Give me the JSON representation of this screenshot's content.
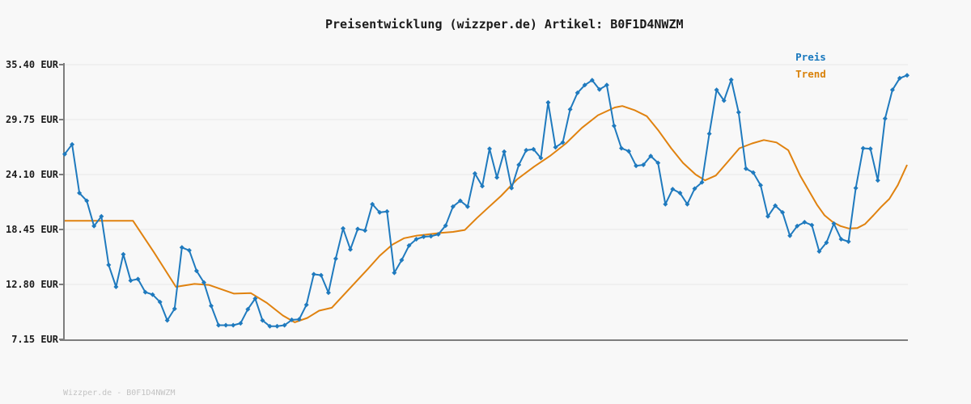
{
  "title": "Preisentwicklung (wizzper.de) Artikel: B0F1D4NWZM",
  "watermark": "Wizzper.de - B0F1D4NWZM",
  "legend": [
    {
      "label": "Preis",
      "color": "#1878be"
    },
    {
      "label": "Trend",
      "color": "#d9820b"
    }
  ],
  "colors": {
    "background": "#f8f8f8",
    "grid": "#e8e8e8",
    "axis": "#7d7d7d",
    "price": "#1f7abe",
    "trend": "#e0820f"
  },
  "chart_data": {
    "type": "line",
    "title": "Preisentwicklung (wizzper.de) Artikel: B0F1D4NWZM",
    "xlabel": "",
    "ylabel": "",
    "grid": true,
    "legend_position": "top-right",
    "y_axis": {
      "unit": "EUR",
      "min": 7.15,
      "max": 35.4,
      "ticks": [
        {
          "label": "35.40 EUR",
          "value": 35.4
        },
        {
          "label": "29.75 EUR",
          "value": 29.75
        },
        {
          "label": "24.10 EUR",
          "value": 24.1
        },
        {
          "label": "18.45 EUR",
          "value": 18.45
        },
        {
          "label": "12.80 EUR",
          "value": 12.8
        },
        {
          "label": "7.15 EUR",
          "value": 7.15
        }
      ]
    },
    "series": [
      {
        "name": "Preis",
        "color": "#1f7abe",
        "marker": "diamond",
        "values": [
          26.2,
          27.2,
          22.2,
          21.4,
          18.8,
          19.8,
          14.8,
          12.55,
          15.9,
          13.2,
          13.35,
          12.0,
          11.75,
          11.0,
          9.1,
          10.3,
          16.6,
          16.3,
          14.2,
          13.0,
          10.6,
          8.6,
          8.6,
          8.6,
          8.8,
          10.25,
          11.35,
          9.1,
          8.5,
          8.5,
          8.6,
          9.15,
          9.2,
          10.7,
          13.85,
          13.75,
          11.95,
          15.45,
          18.55,
          16.4,
          18.5,
          18.35,
          21.05,
          20.2,
          20.3,
          14.0,
          15.3,
          16.8,
          17.45,
          17.7,
          17.75,
          17.95,
          18.85,
          20.8,
          21.4,
          20.8,
          24.2,
          22.9,
          26.75,
          23.8,
          26.45,
          22.7,
          25.1,
          26.6,
          26.7,
          25.8,
          31.5,
          26.9,
          27.4,
          30.8,
          32.5,
          33.3,
          33.8,
          32.85,
          33.3,
          29.1,
          26.8,
          26.5,
          25.0,
          25.1,
          26.0,
          25.3,
          21.05,
          22.6,
          22.2,
          21.05,
          22.65,
          23.3,
          28.3,
          32.8,
          31.7,
          33.85,
          30.5,
          24.7,
          24.3,
          23.0,
          19.8,
          20.9,
          20.2,
          17.8,
          18.8,
          19.2,
          18.9,
          16.2,
          17.1,
          19.05,
          17.45,
          17.2,
          22.7,
          26.8,
          26.75,
          23.5,
          29.85,
          32.8,
          34.0,
          34.3
        ]
      },
      {
        "name": "Trend",
        "color": "#e0820f",
        "marker": "none",
        "points": [
          [
            0,
            19.35
          ],
          [
            0.081,
            19.35
          ],
          [
            0.106,
            16.1
          ],
          [
            0.132,
            12.55
          ],
          [
            0.154,
            12.85
          ],
          [
            0.171,
            12.75
          ],
          [
            0.201,
            11.85
          ],
          [
            0.221,
            11.9
          ],
          [
            0.24,
            10.9
          ],
          [
            0.259,
            9.6
          ],
          [
            0.273,
            8.9
          ],
          [
            0.288,
            9.35
          ],
          [
            0.302,
            10.1
          ],
          [
            0.317,
            10.4
          ],
          [
            0.331,
            11.7
          ],
          [
            0.345,
            13.0
          ],
          [
            0.36,
            14.4
          ],
          [
            0.374,
            15.75
          ],
          [
            0.389,
            16.9
          ],
          [
            0.403,
            17.55
          ],
          [
            0.417,
            17.8
          ],
          [
            0.432,
            17.95
          ],
          [
            0.446,
            18.1
          ],
          [
            0.461,
            18.2
          ],
          [
            0.475,
            18.4
          ],
          [
            0.489,
            19.6
          ],
          [
            0.504,
            20.8
          ],
          [
            0.518,
            21.9
          ],
          [
            0.537,
            23.6
          ],
          [
            0.557,
            24.9
          ],
          [
            0.576,
            26.0
          ],
          [
            0.595,
            27.3
          ],
          [
            0.614,
            28.9
          ],
          [
            0.633,
            30.2
          ],
          [
            0.653,
            31.0
          ],
          [
            0.662,
            31.15
          ],
          [
            0.677,
            30.7
          ],
          [
            0.691,
            30.1
          ],
          [
            0.705,
            28.6
          ],
          [
            0.72,
            26.8
          ],
          [
            0.734,
            25.3
          ],
          [
            0.749,
            24.1
          ],
          [
            0.76,
            23.5
          ],
          [
            0.773,
            24.0
          ],
          [
            0.787,
            25.4
          ],
          [
            0.801,
            26.8
          ],
          [
            0.816,
            27.3
          ],
          [
            0.83,
            27.65
          ],
          [
            0.845,
            27.4
          ],
          [
            0.859,
            26.6
          ],
          [
            0.873,
            24.0
          ],
          [
            0.883,
            22.5
          ],
          [
            0.893,
            21.0
          ],
          [
            0.902,
            19.9
          ],
          [
            0.912,
            19.2
          ],
          [
            0.921,
            18.8
          ],
          [
            0.931,
            18.55
          ],
          [
            0.941,
            18.6
          ],
          [
            0.95,
            19.0
          ],
          [
            0.96,
            19.9
          ],
          [
            0.969,
            20.75
          ],
          [
            0.979,
            21.6
          ],
          [
            0.989,
            23.0
          ],
          [
            1,
            25.1
          ]
        ]
      }
    ]
  }
}
